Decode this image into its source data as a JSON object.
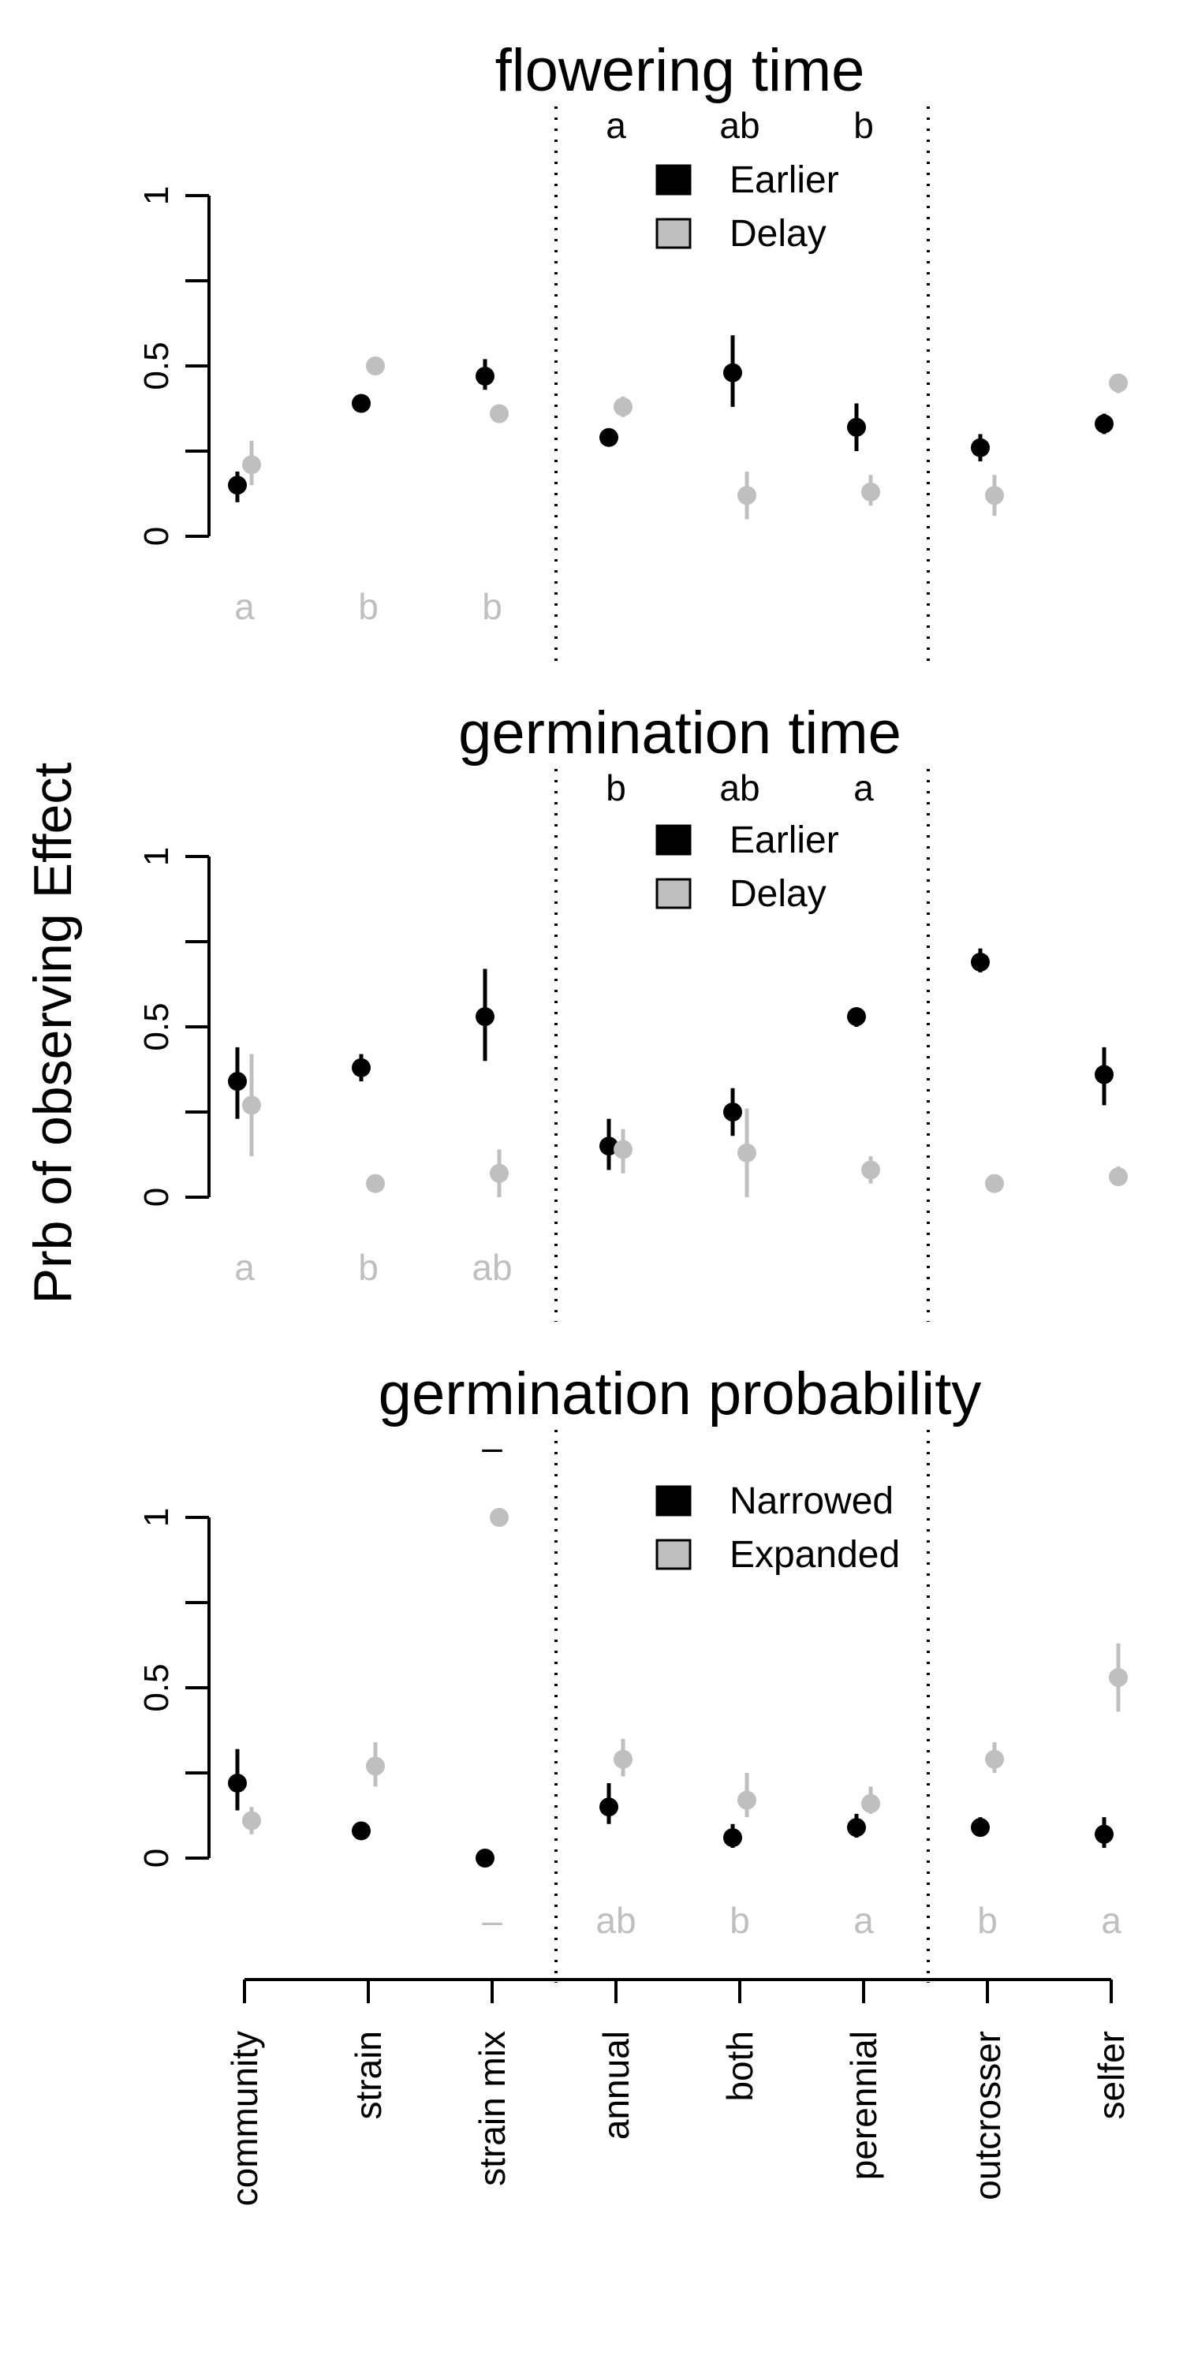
{
  "ylabel": "Prb of observing Effect",
  "categories": [
    "community",
    "strain",
    "strain mix",
    "annual",
    "both",
    "perennial",
    "outcrosser",
    "selfer"
  ],
  "y_ticks": [
    "0",
    "0.5",
    "1"
  ],
  "colors": {
    "series1": "#000000",
    "series2": "#bfbfbf"
  },
  "chart_data": [
    {
      "type": "scatter",
      "title": "flowering time",
      "categories": [
        "community",
        "strain",
        "strain mix",
        "annual",
        "both",
        "perennial",
        "outcrosser",
        "selfer"
      ],
      "ylim": [
        0,
        1
      ],
      "legend_position": "top-center",
      "series": [
        {
          "name": "Earlier",
          "color": "#000000",
          "values": [
            0.15,
            0.39,
            0.47,
            0.29,
            0.48,
            0.32,
            0.26,
            0.33
          ],
          "lower": [
            0.1,
            0.37,
            0.43,
            0.27,
            0.38,
            0.25,
            0.22,
            0.3
          ],
          "upper": [
            0.19,
            0.41,
            0.52,
            0.31,
            0.59,
            0.39,
            0.3,
            0.36
          ]
        },
        {
          "name": "Delay",
          "color": "#bfbfbf",
          "values": [
            0.21,
            0.5,
            0.36,
            0.38,
            0.12,
            0.13,
            0.12,
            0.45
          ],
          "lower": [
            0.15,
            0.49,
            0.35,
            0.35,
            0.05,
            0.09,
            0.06,
            0.42
          ],
          "upper": [
            0.28,
            0.51,
            0.37,
            0.41,
            0.19,
            0.18,
            0.18,
            0.47
          ]
        }
      ],
      "top_letters": [
        "a",
        "ab",
        "b"
      ],
      "bottom_letters": [
        "a",
        "b",
        "b"
      ]
    },
    {
      "type": "scatter",
      "title": "germination time",
      "categories": [
        "community",
        "strain",
        "strain mix",
        "annual",
        "both",
        "perennial",
        "outcrosser",
        "selfer"
      ],
      "ylim": [
        0,
        1
      ],
      "legend_position": "top-center",
      "series": [
        {
          "name": "Earlier",
          "color": "#000000",
          "values": [
            0.34,
            0.38,
            0.53,
            0.15,
            0.25,
            0.53,
            0.69,
            0.36
          ],
          "lower": [
            0.23,
            0.34,
            0.4,
            0.08,
            0.18,
            0.5,
            0.66,
            0.27
          ],
          "upper": [
            0.44,
            0.42,
            0.67,
            0.23,
            0.32,
            0.55,
            0.73,
            0.44
          ]
        },
        {
          "name": "Delay",
          "color": "#bfbfbf",
          "values": [
            0.27,
            0.04,
            0.07,
            0.14,
            0.13,
            0.08,
            0.04,
            0.06
          ],
          "lower": [
            0.12,
            0.03,
            0.0,
            0.07,
            0.0,
            0.04,
            0.03,
            0.04
          ],
          "upper": [
            0.42,
            0.05,
            0.14,
            0.2,
            0.26,
            0.12,
            0.05,
            0.09
          ]
        }
      ],
      "top_letters": [
        "b",
        "ab",
        "a"
      ],
      "bottom_letters": [
        "a",
        "b",
        "ab"
      ]
    },
    {
      "type": "scatter",
      "title": "germination probability",
      "categories": [
        "community",
        "strain",
        "strain mix",
        "annual",
        "both",
        "perennial",
        "outcrosser",
        "selfer"
      ],
      "ylim": [
        0,
        1
      ],
      "legend_position": "top-center",
      "series": [
        {
          "name": "Narrowed",
          "color": "#000000",
          "values": [
            0.22,
            0.08,
            0.0,
            0.15,
            0.06,
            0.09,
            0.09,
            0.07
          ],
          "lower": [
            0.14,
            0.07,
            0.0,
            0.1,
            0.03,
            0.06,
            0.07,
            0.03
          ],
          "upper": [
            0.32,
            0.09,
            0.0,
            0.22,
            0.1,
            0.13,
            0.12,
            0.12
          ]
        },
        {
          "name": "Expanded",
          "color": "#bfbfbf",
          "values": [
            0.11,
            0.27,
            1.0,
            0.29,
            0.17,
            0.16,
            0.29,
            0.53
          ],
          "lower": [
            0.07,
            0.21,
            1.0,
            0.24,
            0.12,
            0.13,
            0.25,
            0.43
          ],
          "upper": [
            0.15,
            0.34,
            1.0,
            0.35,
            0.25,
            0.21,
            0.34,
            0.63
          ]
        }
      ],
      "top_letters": [
        "–"
      ],
      "bottom_letters": [
        "–",
        "ab",
        "b",
        "a",
        "b",
        "a"
      ]
    }
  ]
}
